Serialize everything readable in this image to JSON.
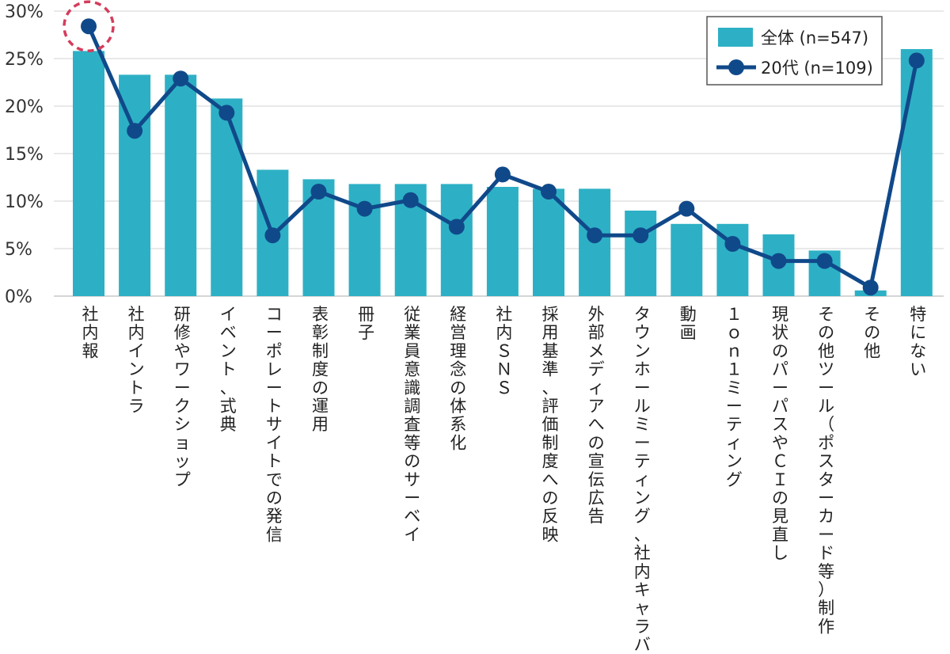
{
  "chart_data": {
    "type": "bar+line",
    "title": "",
    "xlabel": "",
    "ylabel": "",
    "ylim": [
      0,
      30
    ],
    "yticks": [
      "0%",
      "5%",
      "10%",
      "15%",
      "20%",
      "25%",
      "30%"
    ],
    "grid": true,
    "legend_position": "top-right",
    "categories": [
      "社内報",
      "社内イントラ",
      "研修やワークショップ",
      "イベント、式典",
      "コーポレートサイトでの発信",
      "表彰制度の運用",
      "冊子",
      "従業員意識調査等のサーベイ",
      "経営理念の体系化",
      "社内ＳＮＳ",
      "採用基準、評価制度への反映",
      "外部メディアへの宣伝広告",
      "タウンホールミーティング、社内キャラバン",
      "動画",
      "１ｏｎ１ミーティング",
      "現状のパーパスやＣＩの見直し",
      "その他ツール（ポスターカード等）制作",
      "その他",
      "特にない"
    ],
    "series": [
      {
        "name": "全体 (n=547)",
        "kind": "bar",
        "color": "#2db0c5",
        "values": [
          25.8,
          23.3,
          23.3,
          20.8,
          13.3,
          12.3,
          11.8,
          11.8,
          11.8,
          11.5,
          11.3,
          11.3,
          9.0,
          7.6,
          7.6,
          6.5,
          4.8,
          0.6,
          26.0
        ]
      },
      {
        "name": "20代 (n=109)",
        "kind": "line",
        "color": "#10498a",
        "values": [
          28.4,
          17.4,
          22.9,
          19.3,
          6.4,
          11.0,
          9.2,
          10.1,
          7.3,
          12.8,
          11.0,
          6.4,
          6.4,
          9.2,
          5.5,
          3.7,
          3.7,
          0.9,
          24.8
        ]
      }
    ],
    "annotations": [
      {
        "type": "dashed-circle",
        "category_index": 0,
        "series": "20代 (n=109)",
        "color": "#d43c5c"
      }
    ]
  }
}
